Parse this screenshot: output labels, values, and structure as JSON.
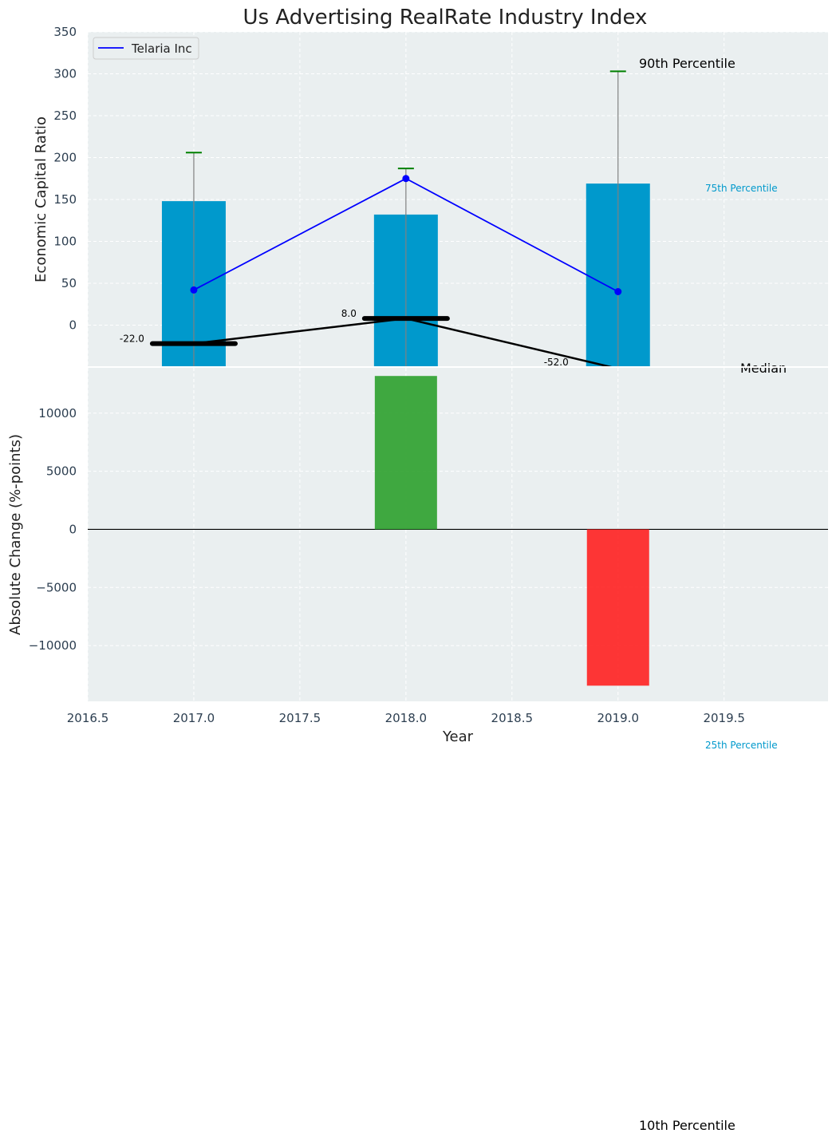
{
  "chart_data": [
    {
      "type": "bar",
      "title": "Us Advertising RealRate Industry Index",
      "xlabel": "",
      "ylabel": "Economic Capital Ratio",
      "x": [
        2017,
        2018,
        2019
      ],
      "xlim": [
        2016.5,
        2019.99
      ],
      "ylim": [
        -50,
        350
      ],
      "yticks": [
        0,
        50,
        100,
        150,
        200,
        250,
        300,
        350
      ],
      "grid": true,
      "legend": {
        "placement": "top-left",
        "entries": [
          "Telaria Inc"
        ]
      },
      "series": [
        {
          "name": "",
          "kind": "bar",
          "color": "#0099cc",
          "values": [
            148,
            132,
            169
          ]
        },
        {
          "name": "",
          "kind": "errorbar",
          "color": "#008000",
          "values": [
            206,
            187,
            303
          ]
        },
        {
          "name": "Telaria Inc",
          "kind": "line",
          "color": "#0000ff",
          "values": [
            42,
            175,
            40
          ]
        },
        {
          "name": "",
          "kind": "line",
          "color": "#000000",
          "values": [
            -22,
            8,
            -52
          ],
          "labels": [
            "-22.0",
            "8.0",
            "-52.0"
          ]
        }
      ],
      "annotations": [
        "90th Percentile",
        "75th Percentile",
        "Median",
        "25th Percentile",
        "10th Percentile"
      ]
    },
    {
      "type": "bar",
      "xlabel": "Year",
      "ylabel": "Absolute Change (%-points)",
      "x": [
        2017,
        2018,
        2019
      ],
      "xlim": [
        2016.5,
        2019.99
      ],
      "xticks": [
        2016.5,
        2017.0,
        2017.5,
        2018.0,
        2018.5,
        2019.0,
        2019.5
      ],
      "ylim": [
        -14800,
        13900
      ],
      "yticks": [
        -10000,
        -5000,
        0,
        5000,
        10000
      ],
      "grid": true,
      "values": [
        0,
        13200,
        -13450
      ],
      "colors": {
        "positive": "#2ca02c",
        "negative": "#ff2020"
      }
    }
  ]
}
